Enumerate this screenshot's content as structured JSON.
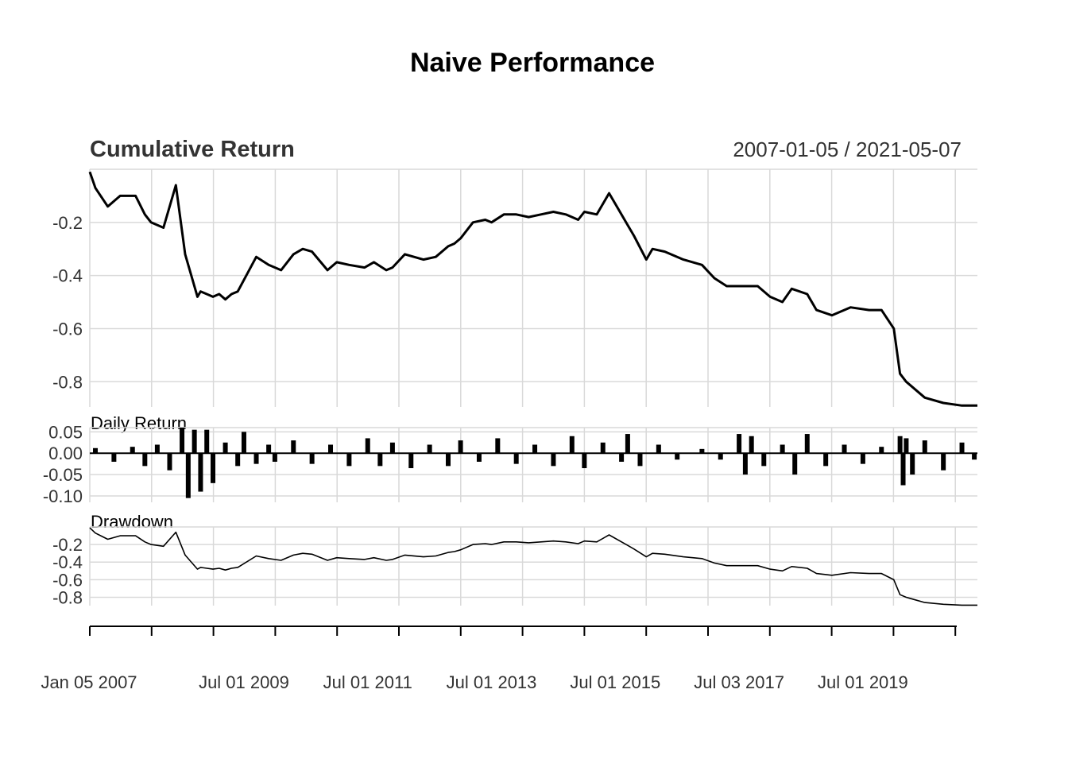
{
  "chart_data": {
    "title": "Naive Performance",
    "date_range": "2007-01-05 / 2021-05-07",
    "x_tick_labels": [
      "Jan 05 2007",
      "Jul 01 2009",
      "Jul 01 2011",
      "Jul 01 2013",
      "Jul 01 2015",
      "Jul 03 2017",
      "Jul 01 2019"
    ],
    "x_tick_label_dates": [
      2007.01,
      2009.5,
      2011.5,
      2013.5,
      2015.5,
      2017.5,
      2019.5
    ],
    "x_range": [
      2007.01,
      2021.35
    ],
    "grid": true,
    "panels": [
      {
        "name": "Cumulative Return",
        "type": "line",
        "ylim": [
          -0.895,
          -0.0
        ],
        "yticks": [
          -0.2,
          -0.4,
          -0.6,
          -0.8
        ],
        "ytick_labels": [
          "-0.2",
          "-0.4",
          "-0.6",
          "-0.8"
        ],
        "x": [
          2007.01,
          2007.1,
          2007.3,
          2007.5,
          2007.75,
          2007.9,
          2008.0,
          2008.2,
          2008.4,
          2008.55,
          2008.75,
          2008.8,
          2008.9,
          2009.0,
          2009.1,
          2009.2,
          2009.3,
          2009.4,
          2009.7,
          2009.9,
          2010.1,
          2010.3,
          2010.45,
          2010.6,
          2010.85,
          2011.0,
          2011.2,
          2011.45,
          2011.6,
          2011.8,
          2011.9,
          2012.1,
          2012.4,
          2012.6,
          2012.8,
          2012.9,
          2013.0,
          2013.2,
          2013.4,
          2013.5,
          2013.7,
          2013.9,
          2014.1,
          2014.3,
          2014.5,
          2014.7,
          2014.9,
          2015.0,
          2015.2,
          2015.4,
          2015.7,
          2015.8,
          2016.0,
          2016.1,
          2016.3,
          2016.6,
          2016.9,
          2017.1,
          2017.3,
          2017.6,
          2017.8,
          2018.0,
          2018.2,
          2018.35,
          2018.6,
          2018.75,
          2019.0,
          2019.3,
          2019.6,
          2019.8,
          2020.0,
          2020.1,
          2020.2,
          2020.35,
          2020.5,
          2020.8,
          2021.1,
          2021.35
        ],
        "y": [
          -0.01,
          -0.07,
          -0.14,
          -0.1,
          -0.1,
          -0.17,
          -0.2,
          -0.22,
          -0.06,
          -0.32,
          -0.48,
          -0.46,
          -0.47,
          -0.48,
          -0.47,
          -0.49,
          -0.47,
          -0.46,
          -0.33,
          -0.36,
          -0.38,
          -0.32,
          -0.3,
          -0.31,
          -0.38,
          -0.35,
          -0.36,
          -0.37,
          -0.35,
          -0.38,
          -0.37,
          -0.32,
          -0.34,
          -0.33,
          -0.29,
          -0.28,
          -0.26,
          -0.2,
          -0.19,
          -0.2,
          -0.17,
          -0.17,
          -0.18,
          -0.17,
          -0.16,
          -0.17,
          -0.19,
          -0.16,
          -0.17,
          -0.09,
          -0.21,
          -0.25,
          -0.34,
          -0.3,
          -0.31,
          -0.34,
          -0.36,
          -0.41,
          -0.44,
          -0.44,
          -0.44,
          -0.48,
          -0.5,
          -0.45,
          -0.47,
          -0.53,
          -0.55,
          -0.52,
          -0.53,
          -0.53,
          -0.6,
          -0.77,
          -0.8,
          -0.83,
          -0.86,
          -0.88,
          -0.89,
          -0.89
        ]
      },
      {
        "name": "Daily Return",
        "type": "bar",
        "ylim": [
          -0.115,
          0.06
        ],
        "yticks": [
          0.05,
          0.0,
          -0.05,
          -0.1
        ],
        "ytick_labels": [
          "0.05",
          "0.00",
          "-0.05",
          "-0.10"
        ],
        "x": [
          2007.1,
          2007.4,
          2007.7,
          2007.9,
          2008.1,
          2008.3,
          2008.5,
          2008.6,
          2008.7,
          2008.8,
          2008.9,
          2009.0,
          2009.2,
          2009.4,
          2009.5,
          2009.7,
          2009.9,
          2010.0,
          2010.3,
          2010.6,
          2010.9,
          2011.2,
          2011.5,
          2011.7,
          2011.9,
          2012.2,
          2012.5,
          2012.8,
          2013.0,
          2013.3,
          2013.6,
          2013.9,
          2014.2,
          2014.5,
          2014.8,
          2015.0,
          2015.3,
          2015.6,
          2015.7,
          2015.9,
          2016.2,
          2016.5,
          2016.9,
          2017.2,
          2017.5,
          2017.6,
          2017.7,
          2017.9,
          2018.2,
          2018.4,
          2018.6,
          2018.9,
          2019.2,
          2019.5,
          2019.8,
          2020.1,
          2020.15,
          2020.2,
          2020.3,
          2020.5,
          2020.8,
          2021.1,
          2021.3
        ],
        "values": [
          0.012,
          -0.02,
          0.015,
          -0.03,
          0.02,
          -0.04,
          0.06,
          -0.105,
          0.055,
          -0.09,
          0.055,
          -0.07,
          0.025,
          -0.03,
          0.05,
          -0.025,
          0.02,
          -0.02,
          0.03,
          -0.025,
          0.02,
          -0.03,
          0.035,
          -0.03,
          0.025,
          -0.035,
          0.02,
          -0.03,
          0.03,
          -0.02,
          0.035,
          -0.025,
          0.02,
          -0.03,
          0.04,
          -0.035,
          0.025,
          -0.02,
          0.045,
          -0.03,
          0.02,
          -0.015,
          0.01,
          -0.015,
          0.045,
          -0.05,
          0.04,
          -0.03,
          0.02,
          -0.05,
          0.045,
          -0.03,
          0.02,
          -0.025,
          0.015,
          0.04,
          -0.075,
          0.035,
          -0.05,
          0.03,
          -0.04,
          0.025,
          -0.015
        ]
      },
      {
        "name": "Drawdown",
        "type": "line",
        "ylim": [
          -0.895,
          -0.0
        ],
        "yticks": [
          -0.2,
          -0.4,
          -0.6,
          -0.8
        ],
        "ytick_labels": [
          "-0.2",
          "-0.4",
          "-0.6",
          "-0.8"
        ],
        "x": [
          2007.01,
          2007.1,
          2007.3,
          2007.5,
          2007.75,
          2007.9,
          2008.0,
          2008.2,
          2008.4,
          2008.55,
          2008.75,
          2008.8,
          2008.9,
          2009.0,
          2009.1,
          2009.2,
          2009.3,
          2009.4,
          2009.7,
          2009.9,
          2010.1,
          2010.3,
          2010.45,
          2010.6,
          2010.85,
          2011.0,
          2011.2,
          2011.45,
          2011.6,
          2011.8,
          2011.9,
          2012.1,
          2012.4,
          2012.6,
          2012.8,
          2012.9,
          2013.0,
          2013.2,
          2013.4,
          2013.5,
          2013.7,
          2013.9,
          2014.1,
          2014.3,
          2014.5,
          2014.7,
          2014.9,
          2015.0,
          2015.2,
          2015.4,
          2015.7,
          2015.8,
          2016.0,
          2016.1,
          2016.3,
          2016.6,
          2016.9,
          2017.1,
          2017.3,
          2017.6,
          2017.8,
          2018.0,
          2018.2,
          2018.35,
          2018.6,
          2018.75,
          2019.0,
          2019.3,
          2019.6,
          2019.8,
          2020.0,
          2020.1,
          2020.2,
          2020.35,
          2020.5,
          2020.8,
          2021.1,
          2021.35
        ],
        "y": [
          -0.01,
          -0.07,
          -0.14,
          -0.1,
          -0.1,
          -0.17,
          -0.2,
          -0.22,
          -0.06,
          -0.32,
          -0.48,
          -0.46,
          -0.47,
          -0.48,
          -0.47,
          -0.49,
          -0.47,
          -0.46,
          -0.33,
          -0.36,
          -0.38,
          -0.32,
          -0.3,
          -0.31,
          -0.38,
          -0.35,
          -0.36,
          -0.37,
          -0.35,
          -0.38,
          -0.37,
          -0.32,
          -0.34,
          -0.33,
          -0.29,
          -0.28,
          -0.26,
          -0.2,
          -0.19,
          -0.2,
          -0.17,
          -0.17,
          -0.18,
          -0.17,
          -0.16,
          -0.17,
          -0.19,
          -0.16,
          -0.17,
          -0.09,
          -0.21,
          -0.25,
          -0.34,
          -0.3,
          -0.31,
          -0.34,
          -0.36,
          -0.41,
          -0.44,
          -0.44,
          -0.44,
          -0.48,
          -0.5,
          -0.45,
          -0.47,
          -0.53,
          -0.55,
          -0.52,
          -0.53,
          -0.53,
          -0.6,
          -0.77,
          -0.8,
          -0.83,
          -0.86,
          -0.88,
          -0.89,
          -0.89
        ]
      }
    ]
  }
}
